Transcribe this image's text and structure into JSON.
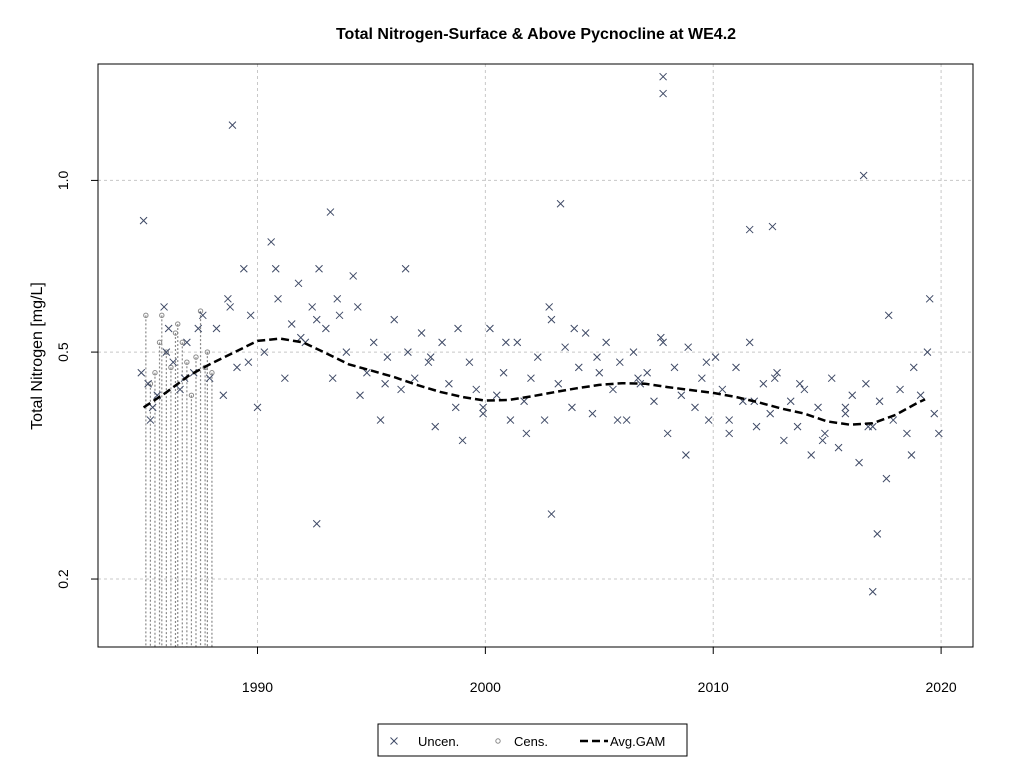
{
  "chart_data": {
    "type": "scatter",
    "title": "Total Nitrogen-Surface & Above Pycnocline at WE4.2",
    "xlabel": "",
    "ylabel": "Total Nitrogen [mg/L]",
    "x_ticks": [
      1990,
      2000,
      2010,
      2020
    ],
    "y_ticks": [
      0.2,
      0.5,
      1.0
    ],
    "y_tick_labels": [
      "0.2",
      "0.5",
      "1.0"
    ],
    "y_scale": "log",
    "xlim": [
      1983.0,
      2021.4
    ],
    "ylim": [
      0.152,
      1.6
    ],
    "grid": true,
    "legend": {
      "position": "bottom",
      "entries": [
        {
          "label": "Uncen.",
          "symbol": "x"
        },
        {
          "label": "Cens.",
          "symbol": "circle"
        },
        {
          "label": "Avg.GAM",
          "symbol": "dashed-line"
        }
      ]
    },
    "colors": {
      "uncensored": "#3f4a66",
      "censored": "#8a8a8a",
      "gam": "#000000",
      "grid": "#c8c8c8"
    },
    "series": [
      {
        "name": "Uncen.",
        "x": [
          1984.9,
          1985.0,
          1985.2,
          1985.4,
          1985.6,
          1985.9,
          1986.1,
          1986.3,
          1986.6,
          1986.9,
          1987.2,
          1987.6,
          1987.9,
          1988.2,
          1988.5,
          1988.8,
          1989.1,
          1989.4,
          1989.7,
          1990.0,
          1990.3,
          1990.6,
          1990.9,
          1991.2,
          1991.5,
          1991.8,
          1992.1,
          1992.4,
          1992.7,
          1993.0,
          1993.3,
          1993.6,
          1993.9,
          1994.2,
          1994.5,
          1994.8,
          1995.1,
          1995.4,
          1995.7,
          1996.0,
          1996.3,
          1996.6,
          1996.9,
          1997.2,
          1997.5,
          1997.8,
          1998.1,
          1998.4,
          1998.7,
          1999.0,
          1999.3,
          1999.6,
          1999.9,
          2000.2,
          2000.5,
          2000.8,
          2001.1,
          2001.4,
          2001.7,
          2002.0,
          2002.3,
          2002.6,
          2002.9,
          2003.2,
          2003.5,
          2003.8,
          2004.1,
          2004.4,
          2004.7,
          2005.0,
          2005.3,
          2005.6,
          2005.9,
          2006.2,
          2006.5,
          2006.8,
          2007.1,
          2007.4,
          2007.7,
          2008.0,
          2008.3,
          2008.6,
          2008.9,
          2009.2,
          2009.5,
          2009.8,
          2010.1,
          2010.4,
          2010.7,
          2011.0,
          2011.3,
          2011.6,
          2011.9,
          2012.2,
          2012.5,
          2012.8,
          2013.1,
          2013.4,
          2013.7,
          2014.0,
          2014.3,
          2014.6,
          2014.9,
          2015.2,
          2015.5,
          2015.8,
          2016.1,
          2016.4,
          2016.7,
          2017.0,
          2017.3,
          2017.6,
          2017.9,
          2018.2,
          2018.5,
          2018.8,
          2019.1,
          2019.4,
          2019.7,
          2019.9,
          1985.3,
          1986.0,
          1986.8,
          1987.4,
          1988.7,
          1989.6,
          1990.8,
          1991.9,
          1992.6,
          1993.5,
          1994.4,
          1995.6,
          1996.5,
          1997.6,
          1998.8,
          1999.9,
          2000.9,
          2001.8,
          2002.8,
          2003.9,
          2004.9,
          2005.8,
          2006.7,
          2007.8,
          2008.8,
          2009.7,
          2010.7,
          2011.8,
          2012.7,
          2013.8,
          2014.8,
          2015.8,
          2016.8,
          2017.7,
          2018.7,
          2019.5,
          1988.9,
          1992.6,
          1993.2,
          2003.3,
          2007.8,
          2007.8,
          2011.6,
          2012.6,
          2016.6,
          2017.0,
          2017.2,
          2002.9
        ],
        "y": [
          0.46,
          0.85,
          0.44,
          0.4,
          0.42,
          0.6,
          0.55,
          0.48,
          0.43,
          0.52,
          0.46,
          0.58,
          0.45,
          0.55,
          0.42,
          0.6,
          0.47,
          0.7,
          0.58,
          0.4,
          0.5,
          0.78,
          0.62,
          0.45,
          0.56,
          0.66,
          0.52,
          0.6,
          0.7,
          0.55,
          0.45,
          0.58,
          0.5,
          0.68,
          0.42,
          0.46,
          0.52,
          0.38,
          0.49,
          0.57,
          0.43,
          0.5,
          0.45,
          0.54,
          0.48,
          0.37,
          0.52,
          0.44,
          0.4,
          0.35,
          0.48,
          0.43,
          0.39,
          0.55,
          0.42,
          0.46,
          0.38,
          0.52,
          0.41,
          0.45,
          0.49,
          0.38,
          0.57,
          0.44,
          0.51,
          0.4,
          0.47,
          0.54,
          0.39,
          0.46,
          0.52,
          0.43,
          0.48,
          0.38,
          0.5,
          0.44,
          0.46,
          0.41,
          0.53,
          0.36,
          0.47,
          0.42,
          0.51,
          0.4,
          0.45,
          0.38,
          0.49,
          0.43,
          0.36,
          0.47,
          0.41,
          0.52,
          0.37,
          0.44,
          0.39,
          0.46,
          0.35,
          0.41,
          0.37,
          0.43,
          0.33,
          0.4,
          0.36,
          0.45,
          0.34,
          0.39,
          0.42,
          0.32,
          0.44,
          0.37,
          0.41,
          0.3,
          0.38,
          0.43,
          0.36,
          0.47,
          0.42,
          0.5,
          0.39,
          0.36,
          0.38,
          0.5,
          0.45,
          0.55,
          0.62,
          0.48,
          0.7,
          0.53,
          0.57,
          0.62,
          0.6,
          0.44,
          0.7,
          0.49,
          0.55,
          0.4,
          0.52,
          0.36,
          0.6,
          0.55,
          0.49,
          0.38,
          0.45,
          0.52,
          0.33,
          0.48,
          0.38,
          0.41,
          0.45,
          0.44,
          0.35,
          0.4,
          0.37,
          0.58,
          0.33,
          0.62,
          1.25,
          0.25,
          0.88,
          0.91,
          1.42,
          1.52,
          0.82,
          0.83,
          1.02,
          0.19,
          0.24,
          0.26
        ],
        "marker": "x"
      },
      {
        "name": "Cens.",
        "x": [
          1985.1,
          1985.3,
          1985.5,
          1985.7,
          1985.8,
          1986.0,
          1986.2,
          1986.4,
          1986.5,
          1986.7,
          1986.9,
          1987.1,
          1987.3,
          1987.5,
          1987.7,
          1987.8,
          1988.0
        ],
        "y": [
          0.58,
          0.44,
          0.46,
          0.52,
          0.58,
          0.5,
          0.47,
          0.54,
          0.56,
          0.52,
          0.48,
          0.42,
          0.49,
          0.59,
          0.47,
          0.5,
          0.46
        ],
        "marker": "circle"
      },
      {
        "name": "Avg.GAM",
        "x": [
          1985.0,
          1986.0,
          1987.0,
          1988.0,
          1989.0,
          1990.0,
          1991.0,
          1992.0,
          1993.0,
          1994.0,
          1995.0,
          1996.0,
          1997.0,
          1998.0,
          1999.0,
          2000.0,
          2001.0,
          2002.0,
          2003.0,
          2004.0,
          2005.0,
          2006.0,
          2007.0,
          2008.0,
          2009.0,
          2010.0,
          2011.0,
          2012.0,
          2013.0,
          2014.0,
          2015.0,
          2016.0,
          2017.0,
          2018.0,
          2019.0,
          2019.3
        ],
        "y": [
          0.4,
          0.425,
          0.455,
          0.478,
          0.5,
          0.523,
          0.528,
          0.52,
          0.498,
          0.476,
          0.464,
          0.452,
          0.438,
          0.426,
          0.417,
          0.411,
          0.412,
          0.418,
          0.425,
          0.432,
          0.438,
          0.441,
          0.44,
          0.434,
          0.429,
          0.424,
          0.417,
          0.408,
          0.398,
          0.39,
          0.378,
          0.373,
          0.375,
          0.388,
          0.408,
          0.413
        ],
        "line": "dashed"
      }
    ]
  }
}
